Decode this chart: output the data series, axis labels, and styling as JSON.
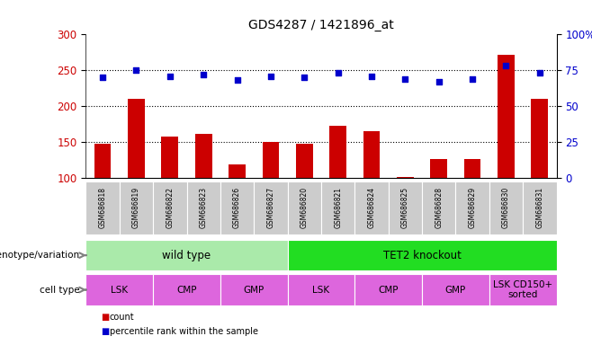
{
  "title": "GDS4287 / 1421896_at",
  "samples": [
    "GSM686818",
    "GSM686819",
    "GSM686822",
    "GSM686823",
    "GSM686826",
    "GSM686827",
    "GSM686820",
    "GSM686821",
    "GSM686824",
    "GSM686825",
    "GSM686828",
    "GSM686829",
    "GSM686830",
    "GSM686831"
  ],
  "counts": [
    147,
    210,
    157,
    161,
    118,
    150,
    148,
    172,
    165,
    101,
    126,
    126,
    272,
    210
  ],
  "percentile_ranks": [
    70,
    75,
    71,
    72,
    68,
    71,
    70,
    73,
    71,
    69,
    67,
    69,
    78,
    73
  ],
  "bar_color": "#cc0000",
  "dot_color": "#0000cc",
  "ylim_left": [
    100,
    300
  ],
  "ylim_right": [
    0,
    100
  ],
  "yticks_left": [
    100,
    150,
    200,
    250,
    300
  ],
  "yticks_right": [
    0,
    25,
    50,
    75,
    100
  ],
  "ytick_labels_right": [
    "0",
    "25",
    "50",
    "75",
    "100%"
  ],
  "grid_values": [
    150,
    200,
    250
  ],
  "genotype_groups": [
    {
      "label": "wild type",
      "start": 0,
      "end": 6,
      "color": "#aaeaaa"
    },
    {
      "label": "TET2 knockout",
      "start": 6,
      "end": 14,
      "color": "#22dd22"
    }
  ],
  "cell_type_groups": [
    {
      "label": "LSK",
      "start": 0,
      "end": 2,
      "color": "#dd66dd"
    },
    {
      "label": "CMP",
      "start": 2,
      "end": 4,
      "color": "#dd66dd"
    },
    {
      "label": "GMP",
      "start": 4,
      "end": 6,
      "color": "#dd66dd"
    },
    {
      "label": "LSK",
      "start": 6,
      "end": 8,
      "color": "#dd66dd"
    },
    {
      "label": "CMP",
      "start": 8,
      "end": 10,
      "color": "#dd66dd"
    },
    {
      "label": "GMP",
      "start": 10,
      "end": 12,
      "color": "#dd66dd"
    },
    {
      "label": "LSK CD150+\nsorted",
      "start": 12,
      "end": 14,
      "color": "#dd66dd"
    }
  ],
  "bar_width": 0.5,
  "background_color": "#ffffff",
  "plot_bg_color": "#ffffff",
  "sample_label_bg": "#cccccc",
  "label_geno": "genotype/variation",
  "label_cell": "cell type",
  "legend_items": [
    {
      "label": "count",
      "color": "#cc0000"
    },
    {
      "label": "percentile rank within the sample",
      "color": "#0000cc"
    }
  ]
}
